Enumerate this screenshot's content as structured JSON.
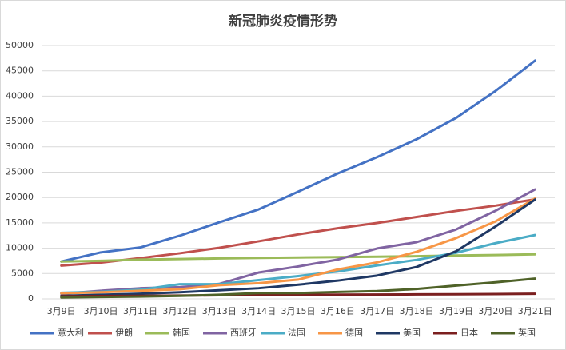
{
  "chart_data": {
    "type": "line",
    "title": "新冠肺炎疫情形势",
    "categories": [
      "3月9日",
      "3月10日",
      "3月11日",
      "3月12日",
      "3月13日",
      "3月14日",
      "3月15日",
      "3月16日",
      "3月17日",
      "3月18日",
      "3月19日",
      "3月20日",
      "3月21日"
    ],
    "series": [
      {
        "name": "意大利",
        "color": "#4472c4",
        "values": [
          7375,
          9172,
          10149,
          12462,
          15113,
          17660,
          21157,
          24747,
          27980,
          31506,
          35713,
          41035,
          47021
        ]
      },
      {
        "name": "伊朗",
        "color": "#c0504d",
        "values": [
          6566,
          7161,
          8042,
          9000,
          10075,
          11364,
          12729,
          13938,
          14991,
          16169,
          17361,
          18407,
          19644
        ]
      },
      {
        "name": "韩国",
        "color": "#9bbb59",
        "values": [
          7382,
          7513,
          7755,
          7869,
          7979,
          8086,
          8162,
          8236,
          8320,
          8413,
          8565,
          8652,
          8799
        ]
      },
      {
        "name": "西班牙",
        "color": "#8064a2",
        "values": [
          1000,
          1600,
          2100,
          2300,
          2950,
          5200,
          6400,
          7750,
          9950,
          11200,
          13700,
          17400,
          21600
        ]
      },
      {
        "name": "法国",
        "color": "#4bacc6",
        "values": [
          1200,
          1400,
          1800,
          2900,
          2900,
          3700,
          4500,
          5400,
          6600,
          7700,
          9100,
          11000,
          12600
        ]
      },
      {
        "name": "德国",
        "color": "#f79646",
        "values": [
          1100,
          1300,
          1600,
          1900,
          2700,
          3100,
          3800,
          5800,
          7200,
          9300,
          12000,
          15300,
          19800
        ]
      },
      {
        "name": "美国",
        "color": "#1f3864",
        "values": [
          600,
          800,
          1000,
          1300,
          1700,
          2100,
          2800,
          3600,
          4600,
          6300,
          9400,
          14300,
          19600
        ]
      },
      {
        "name": "日本",
        "color": "#7b1f1f",
        "values": [
          500,
          550,
          600,
          650,
          700,
          750,
          800,
          820,
          850,
          880,
          900,
          950,
          1000
        ]
      },
      {
        "name": "英国",
        "color": "#4f6228",
        "values": [
          280,
          370,
          460,
          590,
          800,
          1140,
          1140,
          1370,
          1540,
          1950,
          2630,
          3270,
          4000
        ]
      }
    ],
    "ylim": [
      0,
      50000
    ],
    "yticks": [
      0,
      5000,
      10000,
      15000,
      20000,
      25000,
      30000,
      35000,
      40000,
      45000,
      50000
    ],
    "grid": true
  }
}
